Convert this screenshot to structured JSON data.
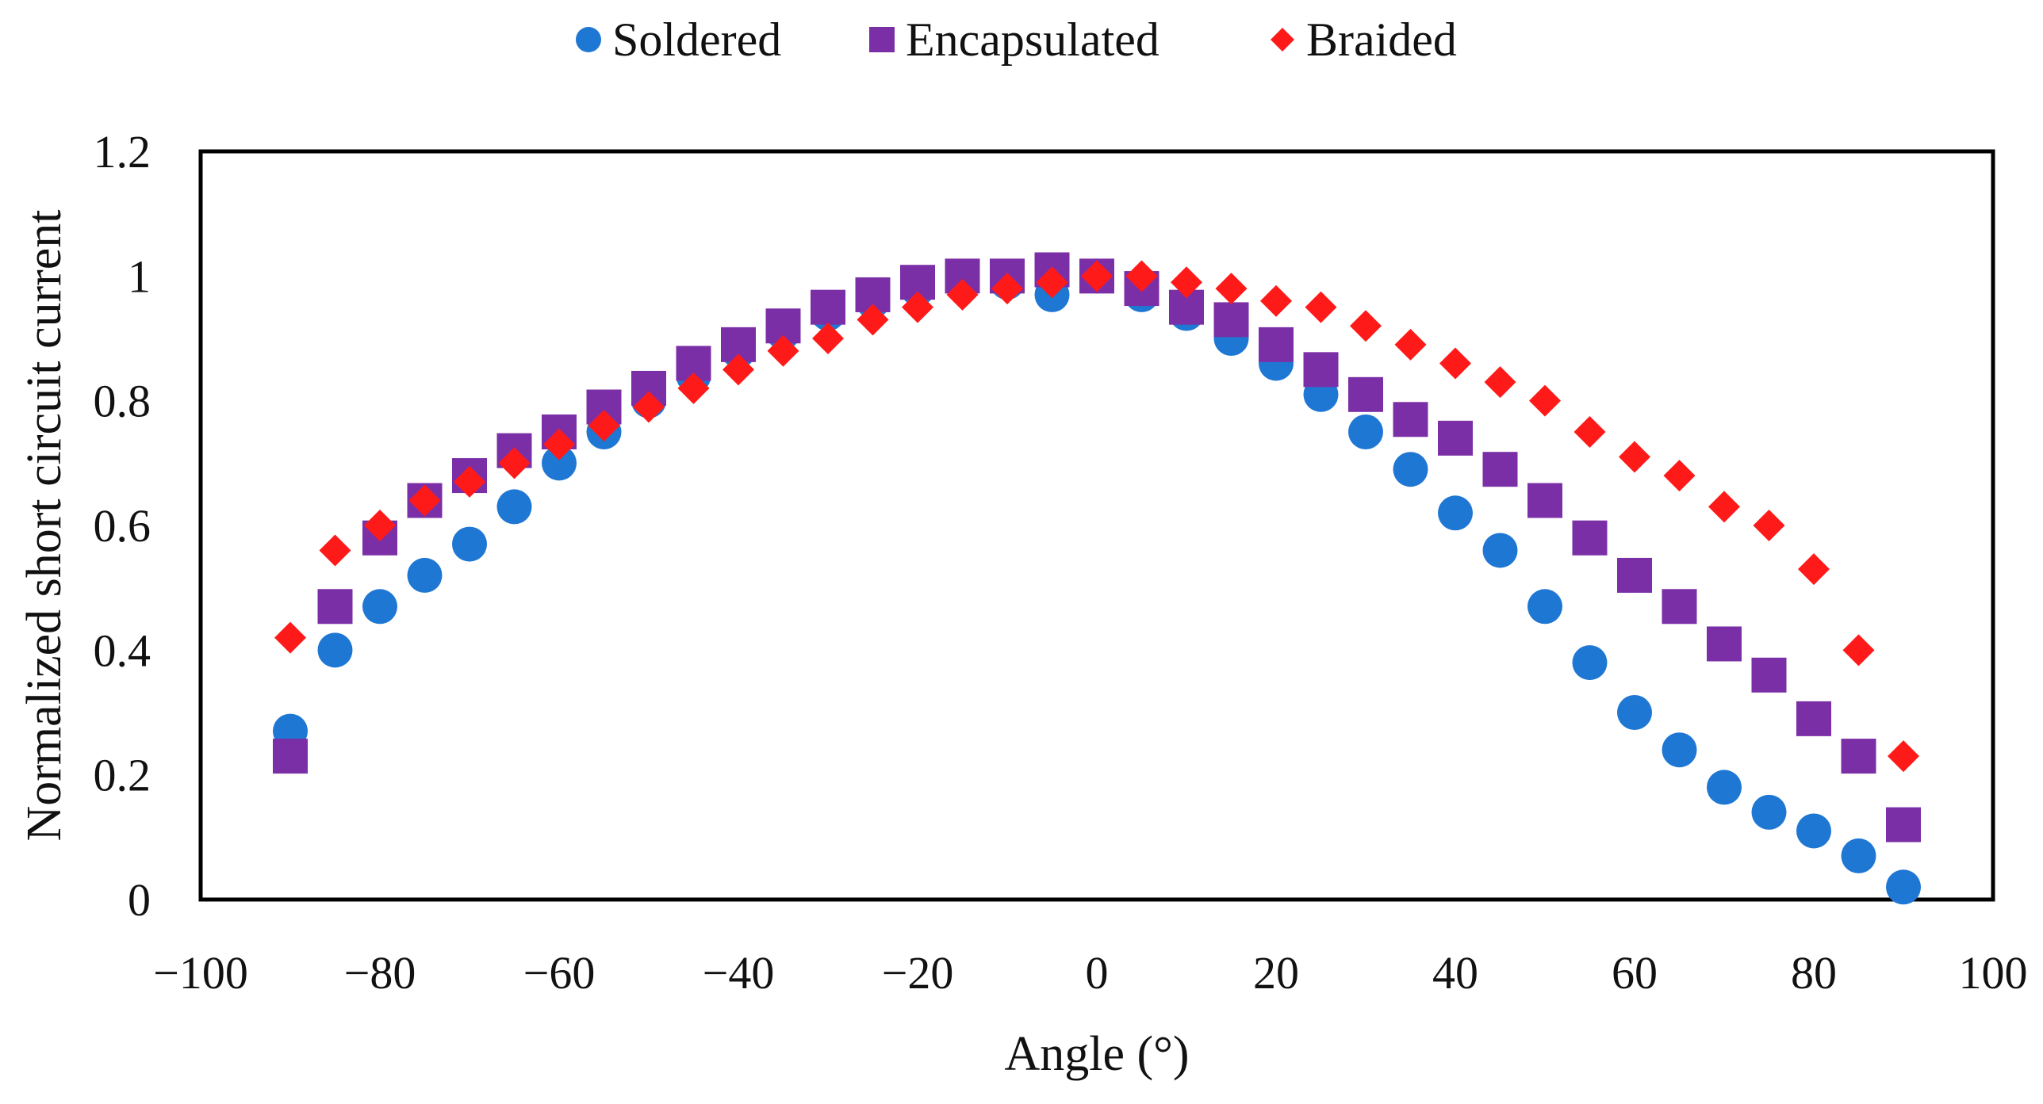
{
  "chart_data": {
    "type": "scatter",
    "title": "",
    "xlabel": "Angle (°)",
    "ylabel": "Normalized short circuit current",
    "xlim": [
      -100,
      100
    ],
    "ylim": [
      0,
      1.2
    ],
    "xticks": [
      -100,
      -80,
      -60,
      -40,
      -20,
      0,
      20,
      40,
      60,
      80,
      100
    ],
    "xtick_labels": [
      "−100",
      "−80",
      "−60",
      "−40",
      "−20",
      "0",
      "20",
      "40",
      "60",
      "80",
      "100"
    ],
    "yticks": [
      0,
      0.2,
      0.4,
      0.6,
      0.8,
      1,
      1.2
    ],
    "ytick_labels": [
      "0",
      "0.2",
      "0.4",
      "0.6",
      "0.8",
      "1",
      "1.2"
    ],
    "grid": false,
    "legend_position": "top-center",
    "x": [
      -90,
      -85,
      -80,
      -75,
      -70,
      -65,
      -60,
      -55,
      -50,
      -45,
      -40,
      -35,
      -30,
      -25,
      -20,
      -15,
      -10,
      -5,
      0,
      5,
      10,
      15,
      20,
      25,
      30,
      35,
      40,
      45,
      50,
      55,
      60,
      65,
      70,
      75,
      80,
      85,
      90
    ],
    "series": [
      {
        "name": "Soldered",
        "marker": "circle",
        "color": "#1f77d4",
        "values": [
          0.27,
          0.4,
          0.47,
          0.52,
          0.57,
          0.63,
          0.7,
          0.75,
          0.8,
          0.84,
          0.88,
          0.91,
          0.94,
          0.96,
          0.98,
          0.99,
          0.99,
          0.97,
          1.0,
          0.97,
          0.94,
          0.9,
          0.86,
          0.81,
          0.75,
          0.69,
          0.62,
          0.56,
          0.47,
          0.38,
          0.3,
          0.24,
          0.18,
          0.14,
          0.11,
          0.07,
          0.02
        ]
      },
      {
        "name": "Encapsulated",
        "marker": "square",
        "color": "#7b2fa6",
        "values": [
          0.23,
          0.47,
          0.58,
          0.64,
          0.68,
          0.72,
          0.75,
          0.79,
          0.82,
          0.86,
          0.89,
          0.92,
          0.95,
          0.97,
          0.99,
          1.0,
          1.0,
          1.01,
          1.0,
          0.98,
          0.95,
          0.93,
          0.89,
          0.85,
          0.81,
          0.77,
          0.74,
          0.69,
          0.64,
          0.58,
          0.52,
          0.47,
          0.41,
          0.36,
          0.29,
          0.23,
          0.12
        ]
      },
      {
        "name": "Braided",
        "marker": "diamond",
        "color": "#ff1a1a",
        "values": [
          0.42,
          0.56,
          0.6,
          0.64,
          0.67,
          0.7,
          0.73,
          0.76,
          0.79,
          0.82,
          0.85,
          0.88,
          0.9,
          0.93,
          0.95,
          0.97,
          0.98,
          0.99,
          1.0,
          1.0,
          0.99,
          0.98,
          0.96,
          0.95,
          0.92,
          0.89,
          0.86,
          0.83,
          0.8,
          0.75,
          0.71,
          0.68,
          0.63,
          0.6,
          0.53,
          0.4,
          0.23
        ]
      }
    ]
  }
}
